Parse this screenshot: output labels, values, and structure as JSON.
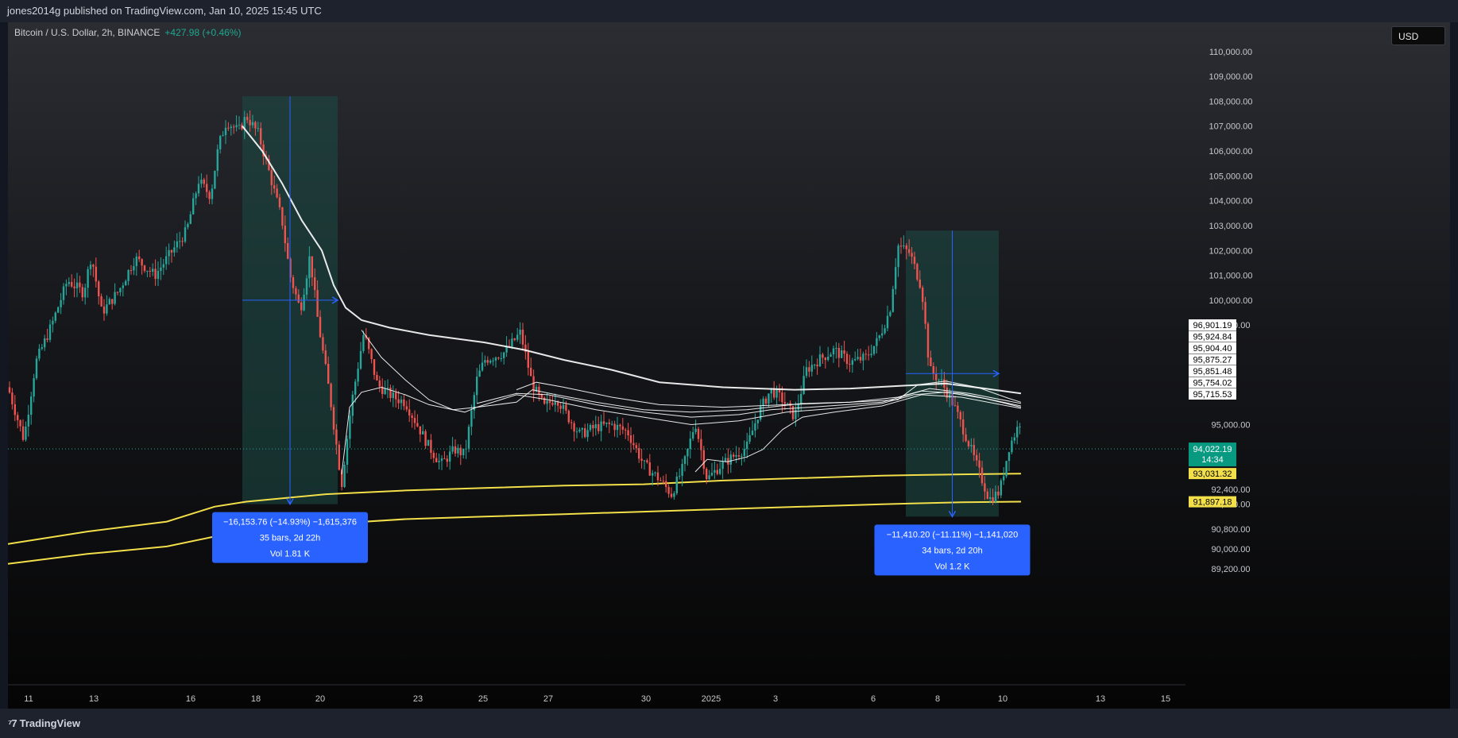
{
  "header": {
    "publisher": "jones2014g published on TradingView.com, Jan 10, 2025 15:45 UTC"
  },
  "legend": {
    "symbol": "Bitcoin / U.S. Dollar, 2h, BINANCE",
    "change": "+427.98 (+0.46%)"
  },
  "currency_button": "USD",
  "footer": {
    "brand": "TradingView",
    "logo_icon": "tradingview-logo-icon"
  },
  "colors": {
    "up": "#26a69a",
    "down": "#ef5350",
    "vwap": "#ffffff",
    "yellow": "#f2df4a",
    "measure": "#2962ff",
    "zone": "#1b4d45"
  },
  "chart_data": {
    "type": "candlestick",
    "symbol": "BTCUSD",
    "timeframe": "2h",
    "y_range": [
      88500,
      110600
    ],
    "y_ticks": [
      "110,000.00",
      "109,000.00",
      "108,000.00",
      "107,000.00",
      "106,000.00",
      "105,000.00",
      "104,000.00",
      "103,000.00",
      "102,000.00",
      "101,000.00",
      "100,000.00",
      "99,000.00",
      "95,000.00",
      "92,400.00",
      "91,800.00",
      "90,800.00",
      "90,000.00",
      "89,200.00"
    ],
    "x_ticks": [
      "11",
      "13",
      "16",
      "18",
      "20",
      "23",
      "25",
      "27",
      "30",
      "2025",
      "3",
      "6",
      "8",
      "10",
      "13",
      "15"
    ],
    "price_path": [
      [
        0,
        96500
      ],
      [
        20,
        94400
      ],
      [
        35,
        97500
      ],
      [
        55,
        99000
      ],
      [
        75,
        100800
      ],
      [
        95,
        100300
      ],
      [
        105,
        101800
      ],
      [
        118,
        99500
      ],
      [
        140,
        100400
      ],
      [
        160,
        101700
      ],
      [
        185,
        101000
      ],
      [
        205,
        101900
      ],
      [
        225,
        102800
      ],
      [
        240,
        104800
      ],
      [
        255,
        104200
      ],
      [
        265,
        106200
      ],
      [
        275,
        107200
      ],
      [
        290,
        106800
      ],
      [
        300,
        107400
      ],
      [
        315,
        106700
      ],
      [
        330,
        105000
      ],
      [
        345,
        103200
      ],
      [
        355,
        101000
      ],
      [
        368,
        99600
      ],
      [
        380,
        101800
      ],
      [
        390,
        99200
      ],
      [
        405,
        96200
      ],
      [
        420,
        92600
      ],
      [
        432,
        95800
      ],
      [
        448,
        98700
      ],
      [
        465,
        96600
      ],
      [
        485,
        96100
      ],
      [
        500,
        95900
      ],
      [
        515,
        95000
      ],
      [
        530,
        94100
      ],
      [
        545,
        93400
      ],
      [
        562,
        94000
      ],
      [
        575,
        93800
      ],
      [
        590,
        96800
      ],
      [
        600,
        97600
      ],
      [
        625,
        97900
      ],
      [
        645,
        98700
      ],
      [
        660,
        96600
      ],
      [
        675,
        95700
      ],
      [
        690,
        96100
      ],
      [
        705,
        95300
      ],
      [
        720,
        94600
      ],
      [
        740,
        94900
      ],
      [
        760,
        95000
      ],
      [
        780,
        94700
      ],
      [
        800,
        93400
      ],
      [
        820,
        92800
      ],
      [
        835,
        92200
      ],
      [
        850,
        93300
      ],
      [
        865,
        95100
      ],
      [
        880,
        92800
      ],
      [
        895,
        93300
      ],
      [
        912,
        93700
      ],
      [
        930,
        94100
      ],
      [
        945,
        95500
      ],
      [
        960,
        96400
      ],
      [
        975,
        96000
      ],
      [
        990,
        95300
      ],
      [
        1005,
        97200
      ],
      [
        1020,
        97600
      ],
      [
        1040,
        98000
      ],
      [
        1060,
        97500
      ],
      [
        1080,
        97700
      ],
      [
        1095,
        98400
      ],
      [
        1110,
        99600
      ],
      [
        1120,
        102200
      ],
      [
        1135,
        101900
      ],
      [
        1150,
        100500
      ],
      [
        1160,
        97200
      ],
      [
        1175,
        96700
      ],
      [
        1190,
        95800
      ],
      [
        1205,
        94600
      ],
      [
        1220,
        93300
      ],
      [
        1235,
        92000
      ],
      [
        1248,
        92300
      ],
      [
        1260,
        94100
      ],
      [
        1275,
        95200
      ]
    ],
    "vwap_lines": [
      {
        "name": "",
        "points": [
          [
            295,
            107000
          ],
          [
            320,
            106000
          ],
          [
            345,
            104700
          ],
          [
            370,
            103200
          ],
          [
            395,
            102000
          ],
          [
            410,
            100600
          ],
          [
            425,
            99700
          ],
          [
            445,
            99200
          ],
          [
            480,
            98900
          ],
          [
            530,
            98600
          ],
          [
            600,
            98300
          ],
          [
            650,
            98000
          ],
          [
            700,
            97600
          ],
          [
            760,
            97200
          ],
          [
            820,
            96700
          ],
          [
            900,
            96500
          ],
          [
            990,
            96400
          ],
          [
            1060,
            96450
          ],
          [
            1120,
            96550
          ],
          [
            1180,
            96650
          ],
          [
            1230,
            96450
          ],
          [
            1275,
            96250
          ]
        ]
      },
      {
        "name": "",
        "points": [
          [
            445,
            98800
          ],
          [
            470,
            97700
          ],
          [
            500,
            96800
          ],
          [
            530,
            96000
          ],
          [
            560,
            95600
          ],
          [
            590,
            95700
          ],
          [
            640,
            95900
          ],
          [
            660,
            96400
          ],
          [
            690,
            96200
          ],
          [
            740,
            95900
          ],
          [
            800,
            95600
          ],
          [
            860,
            95500
          ],
          [
            930,
            95600
          ],
          [
            1000,
            95850
          ],
          [
            1060,
            95900
          ],
          [
            1120,
            96000
          ],
          [
            1145,
            96600
          ],
          [
            1180,
            96750
          ],
          [
            1220,
            96500
          ],
          [
            1260,
            96050
          ],
          [
            1275,
            95900
          ]
        ]
      },
      {
        "name": "",
        "points": [
          [
            640,
            96400
          ],
          [
            665,
            96700
          ],
          [
            700,
            96500
          ],
          [
            760,
            96100
          ],
          [
            820,
            95800
          ],
          [
            900,
            95700
          ],
          [
            980,
            95800
          ],
          [
            1060,
            95900
          ],
          [
            1120,
            96100
          ],
          [
            1160,
            96450
          ],
          [
            1210,
            96250
          ],
          [
            1275,
            95850
          ]
        ]
      },
      {
        "name": "",
        "points": [
          [
            590,
            95850
          ],
          [
            640,
            96250
          ],
          [
            680,
            96200
          ],
          [
            740,
            95800
          ],
          [
            800,
            95500
          ],
          [
            860,
            95300
          ],
          [
            920,
            95400
          ],
          [
            960,
            95600
          ],
          [
            1010,
            95700
          ],
          [
            1100,
            95900
          ],
          [
            1150,
            96350
          ],
          [
            1200,
            96250
          ],
          [
            1275,
            95750
          ]
        ]
      },
      {
        "name": "",
        "points": [
          [
            420,
            93000
          ],
          [
            430,
            95700
          ],
          [
            445,
            96300
          ],
          [
            470,
            96500
          ],
          [
            500,
            96200
          ],
          [
            530,
            95800
          ],
          [
            560,
            95600
          ],
          [
            575,
            95500
          ],
          [
            590,
            95700
          ],
          [
            640,
            96200
          ],
          [
            680,
            96000
          ],
          [
            740,
            95600
          ],
          [
            800,
            95300
          ],
          [
            860,
            95000
          ],
          [
            920,
            95150
          ],
          [
            980,
            95500
          ],
          [
            1040,
            95650
          ],
          [
            1100,
            95850
          ],
          [
            1140,
            96200
          ],
          [
            1180,
            96300
          ],
          [
            1230,
            96050
          ],
          [
            1275,
            95700
          ]
        ]
      },
      {
        "name": "",
        "points": [
          [
            865,
            93100
          ],
          [
            880,
            93600
          ],
          [
            905,
            93500
          ],
          [
            930,
            93700
          ],
          [
            950,
            94000
          ],
          [
            975,
            94800
          ],
          [
            1000,
            95300
          ],
          [
            1040,
            95500
          ],
          [
            1100,
            95750
          ],
          [
            1150,
            96200
          ],
          [
            1200,
            96100
          ],
          [
            1275,
            95650
          ]
        ]
      }
    ],
    "yellow_lines": [
      {
        "name": "",
        "points": [
          [
            0,
            90200
          ],
          [
            100,
            90700
          ],
          [
            200,
            91100
          ],
          [
            260,
            91700
          ],
          [
            300,
            91900
          ],
          [
            400,
            92200
          ],
          [
            500,
            92350
          ],
          [
            600,
            92450
          ],
          [
            700,
            92550
          ],
          [
            800,
            92600
          ],
          [
            900,
            92750
          ],
          [
            1000,
            92850
          ],
          [
            1100,
            92950
          ],
          [
            1200,
            93000
          ],
          [
            1275,
            93030
          ]
        ]
      },
      {
        "name": "",
        "points": [
          [
            0,
            89400
          ],
          [
            100,
            89800
          ],
          [
            200,
            90100
          ],
          [
            260,
            90500
          ],
          [
            300,
            90650
          ],
          [
            400,
            91000
          ],
          [
            500,
            91200
          ],
          [
            600,
            91300
          ],
          [
            700,
            91400
          ],
          [
            800,
            91500
          ],
          [
            900,
            91600
          ],
          [
            1000,
            91700
          ],
          [
            1100,
            91800
          ],
          [
            1200,
            91880
          ],
          [
            1275,
            91900
          ]
        ]
      }
    ],
    "current_price": {
      "value": 94022.19,
      "label": "94,022.19",
      "countdown": "14:34"
    },
    "right_labels": [
      "96,901.19",
      "95,924.84",
      "95,904.40",
      "95,875.27",
      "95,851.48",
      "95,754.02",
      "95,715.53"
    ],
    "yellow_price_labels": [
      "93,031.32",
      "91,897.18"
    ],
    "measurements": [
      {
        "x_start": 295,
        "x_end": 415,
        "top": 108200,
        "bottom": 91800,
        "line1": "−16,153.76 (−14.93%) −1,615,376",
        "line2": "35 bars, 2d 22h",
        "line3": "Vol 1.81 K"
      },
      {
        "x_start": 1130,
        "x_end": 1247,
        "top": 102800,
        "bottom": 91300,
        "line1": "−11,410.20 (−11.11%) −1,141,020",
        "line2": "34 bars, 2d 20h",
        "line3": "Vol 1.2 K"
      }
    ]
  }
}
